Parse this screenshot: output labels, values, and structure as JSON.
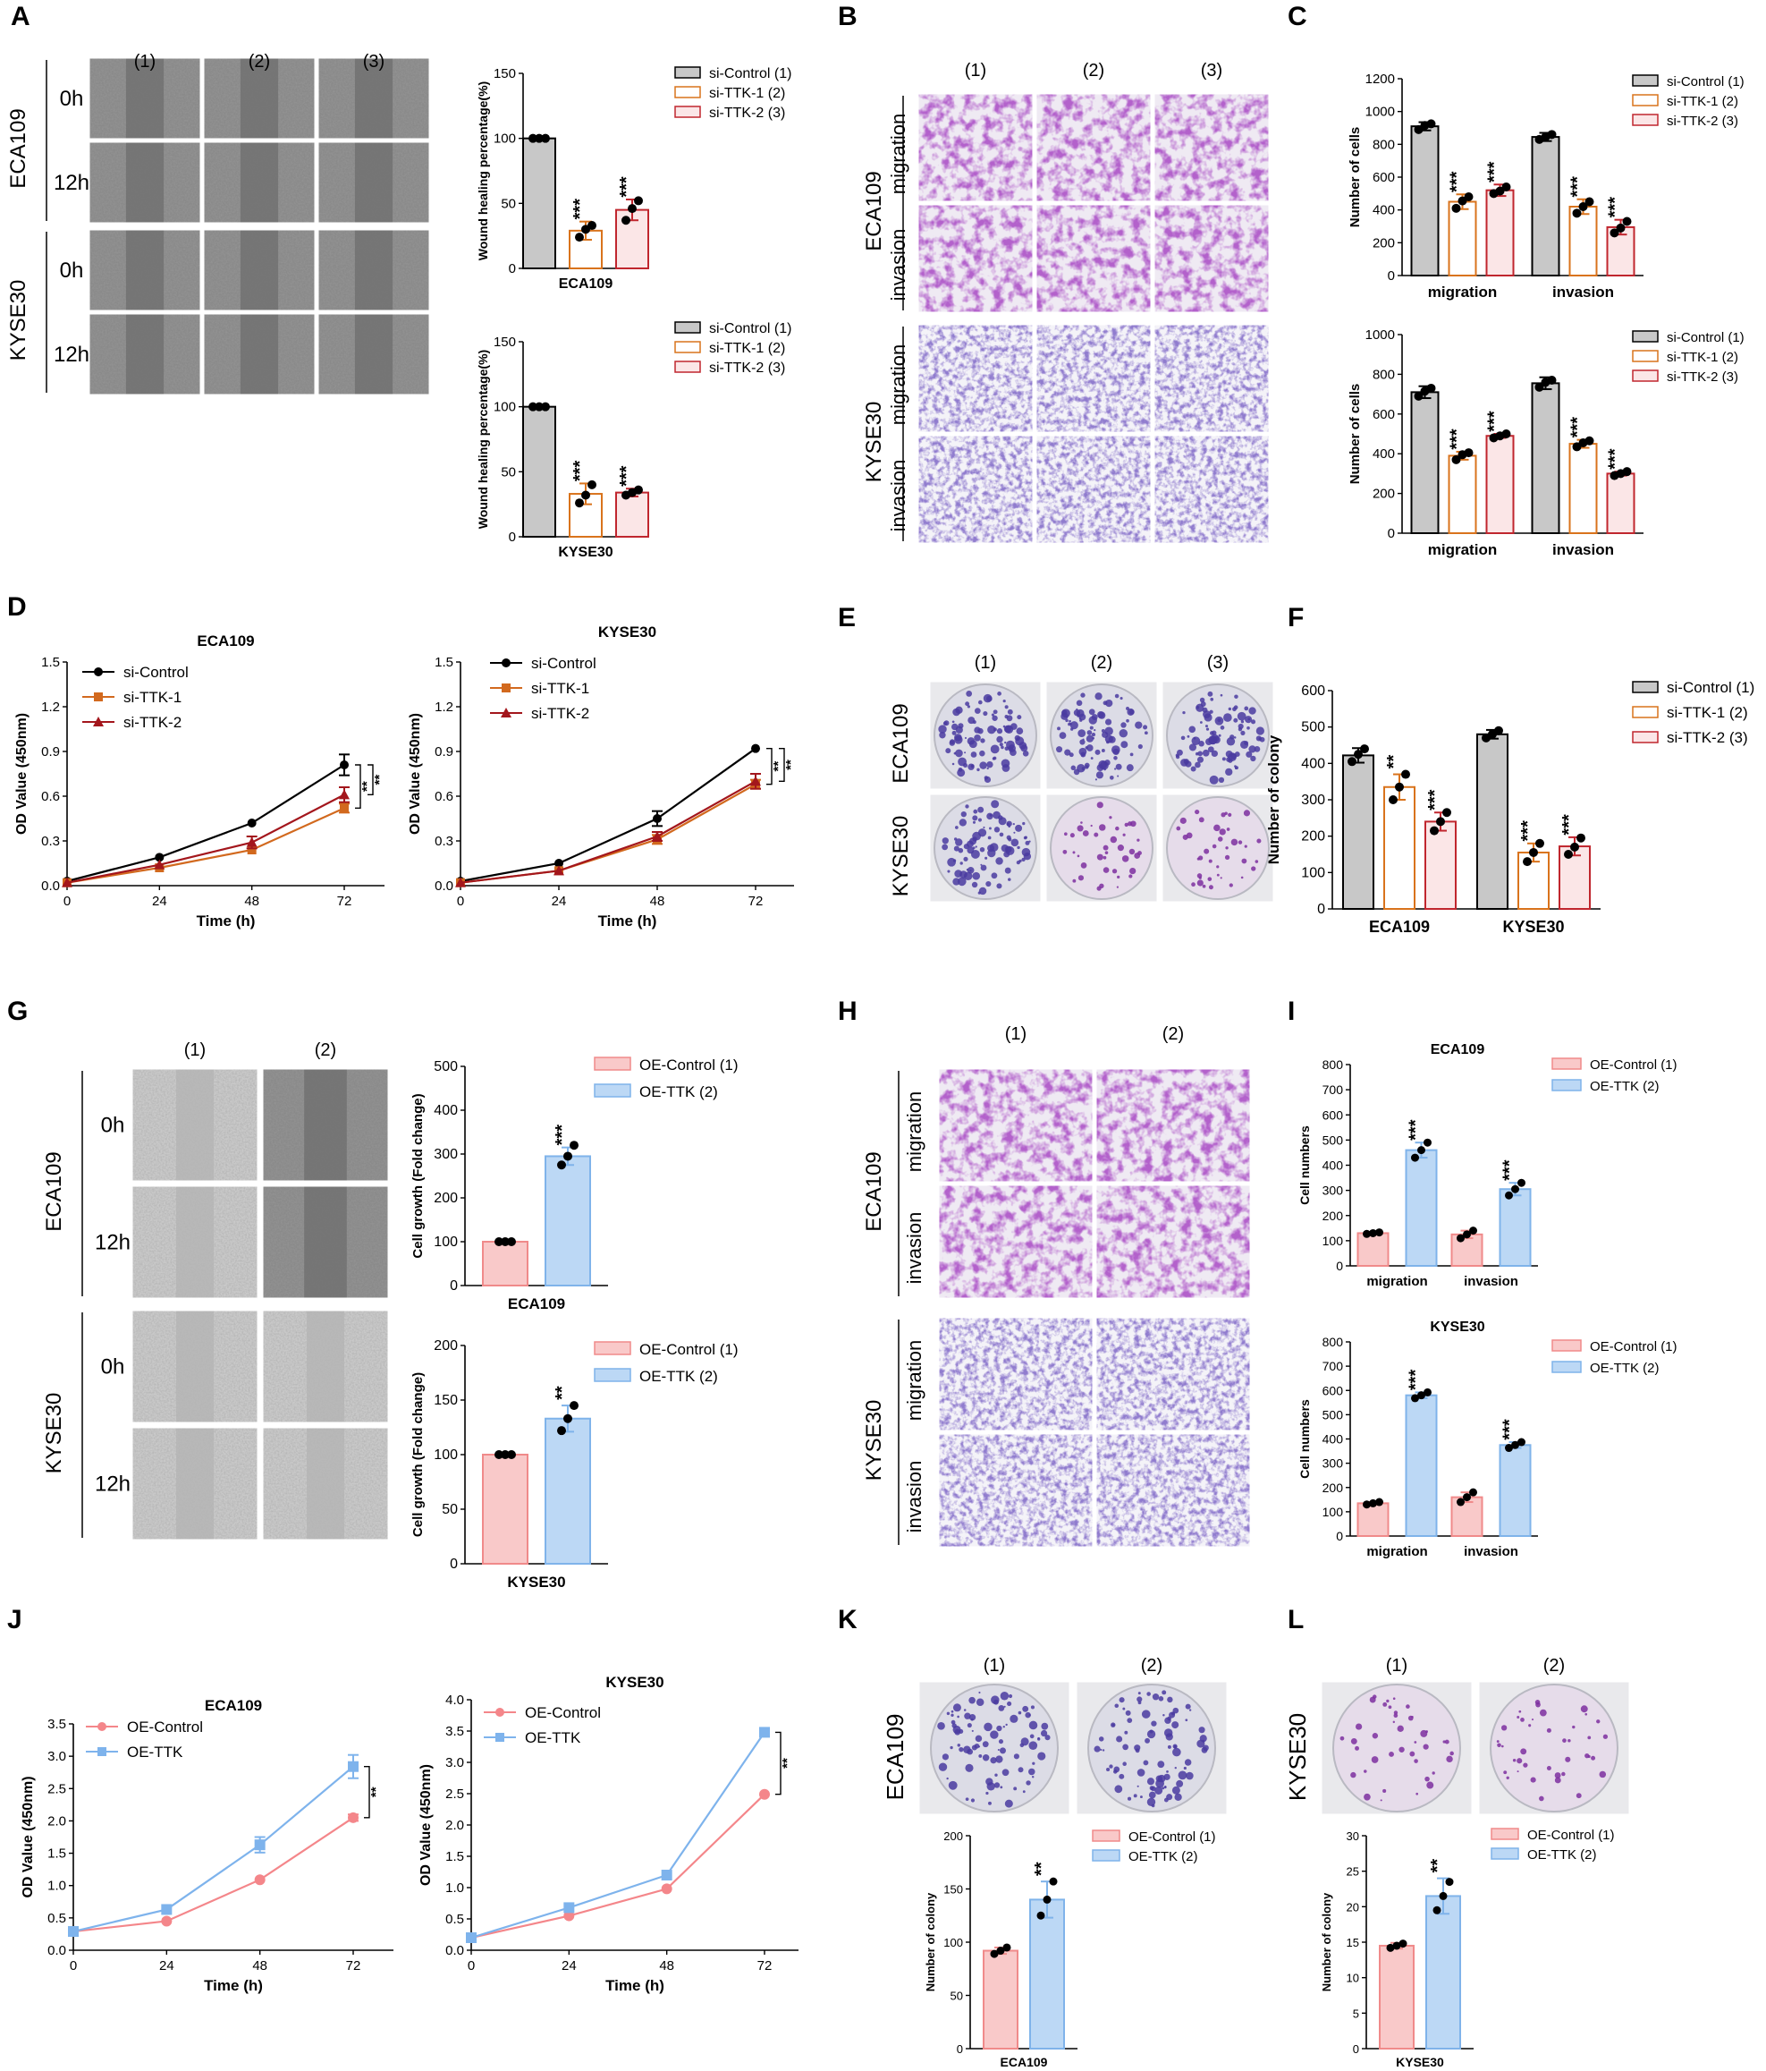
{
  "panels": {
    "A": {
      "letter": "A",
      "columns": [
        "(1)",
        "(2)",
        "(3)"
      ],
      "groups": [
        {
          "name": "ECA109",
          "rows": [
            "0h",
            "12h"
          ]
        },
        {
          "name": "KYSE30",
          "rows": [
            "0h",
            "12h"
          ]
        }
      ]
    },
    "B": {
      "letter": "B",
      "columns": [
        "(1)",
        "(2)",
        "(3)"
      ],
      "groups": [
        {
          "name": "ECA109",
          "rows": [
            "migration",
            "invasion"
          ]
        },
        {
          "name": "KYSE30",
          "rows": [
            "migration",
            "invasion"
          ]
        }
      ]
    },
    "C": {
      "letter": "C"
    },
    "D": {
      "letter": "D"
    },
    "E": {
      "letter": "E",
      "columns": [
        "(1)",
        "(2)",
        "(3)"
      ],
      "groups": [
        {
          "name": "ECA109",
          "rows": [
            ""
          ]
        },
        {
          "name": "KYSE30",
          "rows": [
            ""
          ]
        }
      ]
    },
    "F": {
      "letter": "F"
    },
    "G": {
      "letter": "G",
      "columns": [
        "(1)",
        "(2)"
      ],
      "groups": [
        {
          "name": "ECA109",
          "rows": [
            "0h",
            "12h"
          ]
        },
        {
          "name": "KYSE30",
          "rows": [
            "0h",
            "12h"
          ]
        }
      ]
    },
    "H": {
      "letter": "H",
      "columns": [
        "(1)",
        "(2)"
      ],
      "groups": [
        {
          "name": "ECA109",
          "rows": [
            "migration",
            "invasion"
          ]
        },
        {
          "name": "KYSE30",
          "rows": [
            "migration",
            "invasion"
          ]
        }
      ]
    },
    "I": {
      "letter": "I"
    },
    "J": {
      "letter": "J"
    },
    "K": {
      "letter": "K",
      "columns": [
        "(1)",
        "(2)"
      ],
      "side_label": "ECA109"
    },
    "L": {
      "letter": "L",
      "columns": [
        "(1)",
        "(2)"
      ],
      "side_label": "KYSE30"
    }
  },
  "colors": {
    "grey": "#c8c8c8",
    "orange": "#d9731c",
    "red": "#c0262e",
    "pink_fill": "#f9c9c9",
    "pink_line": "#f08a8a",
    "blue_fill": "#bcd8f5",
    "blue_line": "#7fb3ea",
    "line_black": "#000000",
    "line_orange": "#d2691e",
    "line_darkred": "#a3161c",
    "line_pink": "#f4868a",
    "line_blue": "#7eb3ec",
    "stain_purple": "#7d2fa0",
    "stain_blue": "#4a3ba0",
    "well_bg": "#e9e9ec"
  },
  "chart_data": [
    {
      "id": "A1",
      "type": "bar",
      "categories": [
        "si-Control (1)",
        "si-TTK-1 (2)",
        "si-TTK-2 (3)"
      ],
      "values": [
        100,
        29,
        45
      ],
      "errors": [
        0,
        7,
        8
      ],
      "points": [
        [
          100,
          100,
          100
        ],
        [
          24,
          30,
          33
        ],
        [
          37,
          46,
          52
        ]
      ],
      "sig": [
        "",
        "***",
        "***"
      ],
      "xlabel": "ECA109",
      "ylabel": "Wound healing percentage(%)",
      "ylim": [
        0,
        150
      ],
      "yticks": [
        "0",
        "50",
        "100",
        "150"
      ]
    },
    {
      "id": "A2",
      "type": "bar",
      "categories": [
        "si-Control (1)",
        "si-TTK-1 (2)",
        "si-TTK-2 (3)"
      ],
      "values": [
        100,
        33,
        34
      ],
      "errors": [
        0,
        8,
        3
      ],
      "points": [
        [
          100,
          100,
          100
        ],
        [
          26,
          32,
          40
        ],
        [
          32,
          34,
          36
        ]
      ],
      "sig": [
        "",
        "***",
        "***"
      ],
      "xlabel": "KYSE30",
      "ylabel": "Wound healing percentage(%)",
      "ylim": [
        0,
        150
      ],
      "yticks": [
        "0",
        "50",
        "100",
        "150"
      ]
    },
    {
      "id": "C1",
      "type": "bar",
      "categories": [
        "migration",
        "invasion"
      ],
      "series": [
        {
          "name": "si-Control (1)",
          "values": [
            910,
            845
          ],
          "errors": [
            25,
            25
          ],
          "points": [
            [
              890,
              915,
              925
            ],
            [
              830,
              845,
              860
            ]
          ],
          "sig": [
            "",
            ""
          ]
        },
        {
          "name": "si-TTK-1 (2)",
          "values": [
            450,
            420
          ],
          "errors": [
            45,
            45
          ],
          "points": [
            [
              410,
              455,
              480
            ],
            [
              380,
              420,
              450
            ]
          ],
          "sig": [
            "***",
            "***"
          ]
        },
        {
          "name": "si-TTK-2 (3)",
          "values": [
            520,
            295
          ],
          "errors": [
            35,
            45
          ],
          "points": [
            [
              500,
              515,
              540
            ],
            [
              260,
              290,
              330
            ]
          ],
          "sig": [
            "***",
            "***"
          ]
        }
      ],
      "ylabel": "Number of cells",
      "ylim": [
        0,
        1200
      ],
      "yticks": [
        "0",
        "200",
        "400",
        "600",
        "800",
        "1000",
        "1200"
      ]
    },
    {
      "id": "C2",
      "type": "bar",
      "categories": [
        "migration",
        "invasion"
      ],
      "series": [
        {
          "name": "si-Control (1)",
          "values": [
            710,
            755
          ],
          "errors": [
            30,
            30
          ],
          "points": [
            [
              690,
              715,
              730
            ],
            [
              735,
              760,
              770
            ]
          ],
          "sig": [
            "",
            ""
          ]
        },
        {
          "name": "si-TTK-1 (2)",
          "values": [
            390,
            450
          ],
          "errors": [
            20,
            20
          ],
          "points": [
            [
              370,
              395,
              405
            ],
            [
              435,
              455,
              465
            ]
          ],
          "sig": [
            "***",
            "***"
          ]
        },
        {
          "name": "si-TTK-2 (3)",
          "values": [
            490,
            300
          ],
          "errors": [
            10,
            10
          ],
          "points": [
            [
              480,
              490,
              500
            ],
            [
              290,
              300,
              310
            ]
          ],
          "sig": [
            "***",
            "***"
          ]
        }
      ],
      "ylabel": "Number of cells",
      "ylim": [
        0,
        1000
      ],
      "yticks": [
        "0",
        "200",
        "400",
        "600",
        "800",
        "1000"
      ]
    },
    {
      "id": "D1",
      "type": "line",
      "title": "ECA109",
      "x": [
        0,
        24,
        48,
        72
      ],
      "series": [
        {
          "name": "si-Control",
          "values": [
            0.03,
            0.19,
            0.42,
            0.81
          ],
          "errors": [
            0,
            0,
            0,
            0.07
          ]
        },
        {
          "name": "si-TTK-1",
          "values": [
            0.02,
            0.12,
            0.24,
            0.52
          ],
          "errors": [
            0,
            0,
            0,
            0.03
          ]
        },
        {
          "name": "si-TTK-2",
          "values": [
            0.02,
            0.14,
            0.29,
            0.61
          ],
          "errors": [
            0,
            0,
            0.04,
            0.05
          ]
        }
      ],
      "xlabel": "Time (h)",
      "ylabel": "OD Value (450nm)",
      "ylim": [
        0,
        1.5
      ],
      "yticks": [
        "0.0",
        "0.3",
        "0.6",
        "0.9",
        "1.2",
        "1.5"
      ],
      "xticks": [
        "0",
        "24",
        "48",
        "72"
      ],
      "sig": [
        "**",
        "**"
      ]
    },
    {
      "id": "D2",
      "type": "line",
      "title": "KYSE30",
      "x": [
        0,
        24,
        48,
        72
      ],
      "series": [
        {
          "name": "si-Control",
          "values": [
            0.03,
            0.15,
            0.45,
            0.92
          ],
          "errors": [
            0,
            0,
            0.05,
            0
          ]
        },
        {
          "name": "si-TTK-1",
          "values": [
            0.02,
            0.1,
            0.31,
            0.68
          ],
          "errors": [
            0,
            0,
            0.03,
            0.03
          ]
        },
        {
          "name": "si-TTK-2",
          "values": [
            0.02,
            0.1,
            0.33,
            0.7
          ],
          "errors": [
            0,
            0,
            0.03,
            0.05
          ]
        }
      ],
      "xlabel": "Time (h)",
      "ylabel": "OD Value (450nm)",
      "ylim": [
        0,
        1.5
      ],
      "yticks": [
        "0.0",
        "0.3",
        "0.6",
        "0.9",
        "1.2",
        "1.5"
      ],
      "xticks": [
        "0",
        "24",
        "48",
        "72"
      ],
      "sig": [
        "**",
        "**"
      ]
    },
    {
      "id": "F",
      "type": "bar",
      "categories": [
        "ECA109",
        "KYSE30"
      ],
      "series": [
        {
          "name": "si-Control (1)",
          "values": [
            422,
            480
          ],
          "errors": [
            20,
            12
          ],
          "points": [
            [
              405,
              425,
              440
            ],
            [
              470,
              480,
              490
            ]
          ],
          "sig": [
            "",
            ""
          ]
        },
        {
          "name": "si-TTK-1 (2)",
          "values": [
            335,
            155
          ],
          "errors": [
            35,
            25
          ],
          "points": [
            [
              300,
              335,
              370
            ],
            [
              130,
              155,
              180
            ]
          ],
          "sig": [
            "**",
            "***"
          ]
        },
        {
          "name": "si-TTK-2 (3)",
          "values": [
            240,
            172
          ],
          "errors": [
            25,
            25
          ],
          "points": [
            [
              215,
              240,
              265
            ],
            [
              150,
              170,
              195
            ]
          ],
          "sig": [
            "***",
            "***"
          ]
        }
      ],
      "ylabel": "Number of colony",
      "ylim": [
        0,
        600
      ],
      "yticks": [
        "0",
        "100",
        "200",
        "300",
        "400",
        "500",
        "600"
      ]
    },
    {
      "id": "G1",
      "type": "bar",
      "categories": [
        "OE-Control (1)",
        "OE-TTK (2)"
      ],
      "values": [
        100,
        295
      ],
      "errors": [
        0,
        20
      ],
      "points": [
        [
          100,
          100,
          100
        ],
        [
          275,
          295,
          320
        ]
      ],
      "sig": [
        "",
        "***"
      ],
      "xlabel": "ECA109",
      "ylabel": "Cell growth (Fold change)",
      "ylim": [
        0,
        500
      ],
      "yticks": [
        "0",
        "100",
        "200",
        "300",
        "400",
        "500"
      ]
    },
    {
      "id": "G2",
      "type": "bar",
      "categories": [
        "OE-Control (1)",
        "OE-TTK (2)"
      ],
      "values": [
        100,
        133
      ],
      "errors": [
        0,
        12
      ],
      "points": [
        [
          100,
          100,
          100
        ],
        [
          122,
          133,
          145
        ]
      ],
      "sig": [
        "",
        "**"
      ],
      "xlabel": "KYSE30",
      "ylabel": "Cell growth (Fold change)",
      "ylim": [
        0,
        200
      ],
      "yticks": [
        "0",
        "50",
        "100",
        "150",
        "200"
      ]
    },
    {
      "id": "I1",
      "type": "bar",
      "title": "ECA109",
      "categories": [
        "migration",
        "invasion"
      ],
      "series": [
        {
          "name": "OE-Control (1)",
          "values": [
            130,
            125
          ],
          "errors": [
            3,
            15
          ],
          "points": [
            [
              127,
              130,
              133
            ],
            [
              110,
              125,
              140
            ]
          ],
          "sig": [
            "",
            ""
          ]
        },
        {
          "name": "OE-TTK (2)",
          "values": [
            460,
            305
          ],
          "errors": [
            30,
            25
          ],
          "points": [
            [
              430,
              460,
              490
            ],
            [
              280,
              305,
              330
            ]
          ],
          "sig": [
            "***",
            "***"
          ]
        }
      ],
      "ylabel": "Cell numbers",
      "ylim": [
        0,
        800
      ],
      "yticks": [
        "0",
        "100",
        "200",
        "300",
        "400",
        "500",
        "600",
        "700",
        "800"
      ]
    },
    {
      "id": "I2",
      "type": "bar",
      "title": "KYSE30",
      "categories": [
        "migration",
        "invasion"
      ],
      "series": [
        {
          "name": "OE-Control (1)",
          "values": [
            135,
            160
          ],
          "errors": [
            5,
            20
          ],
          "points": [
            [
              130,
              135,
              140
            ],
            [
              140,
              160,
              180
            ]
          ],
          "sig": [
            "",
            ""
          ]
        },
        {
          "name": "OE-TTK (2)",
          "values": [
            580,
            375
          ],
          "errors": [
            12,
            12
          ],
          "points": [
            [
              568,
              580,
              592
            ],
            [
              363,
              375,
              387
            ]
          ],
          "sig": [
            "***",
            "***"
          ]
        }
      ],
      "ylabel": "Cell numbers",
      "ylim": [
        0,
        800
      ],
      "yticks": [
        "0",
        "100",
        "200",
        "300",
        "400",
        "500",
        "600",
        "700",
        "800"
      ]
    },
    {
      "id": "J1",
      "type": "line",
      "title": "ECA109",
      "x": [
        0,
        24,
        48,
        72
      ],
      "series": [
        {
          "name": "OE-Control",
          "values": [
            0.29,
            0.45,
            1.09,
            2.05
          ],
          "errors": [
            0,
            0,
            0,
            0.05
          ]
        },
        {
          "name": "OE-TTK",
          "values": [
            0.29,
            0.63,
            1.63,
            2.84
          ],
          "errors": [
            0,
            0,
            0.12,
            0.18
          ]
        }
      ],
      "xlabel": "Time (h)",
      "ylabel": "OD Value (450nm)",
      "ylim": [
        0,
        3.5
      ],
      "yticks": [
        "0.0",
        "0.5",
        "1.0",
        "1.5",
        "2.0",
        "2.5",
        "3.0",
        "3.5"
      ],
      "xticks": [
        "0",
        "24",
        "48",
        "72"
      ],
      "sig": [
        "**"
      ]
    },
    {
      "id": "J2",
      "type": "line",
      "title": "KYSE30",
      "x": [
        0,
        24,
        48,
        72
      ],
      "series": [
        {
          "name": "OE-Control",
          "values": [
            0.2,
            0.55,
            0.98,
            2.49
          ],
          "errors": [
            0,
            0,
            0,
            0
          ]
        },
        {
          "name": "OE-TTK",
          "values": [
            0.2,
            0.68,
            1.2,
            3.48
          ],
          "errors": [
            0,
            0,
            0,
            0
          ]
        }
      ],
      "xlabel": "Time (h)",
      "ylabel": "OD Value (450nm)",
      "ylim": [
        0,
        4.0
      ],
      "yticks": [
        "0.0",
        "0.5",
        "1.0",
        "1.5",
        "2.0",
        "2.5",
        "3.0",
        "3.5",
        "4.0"
      ],
      "xticks": [
        "0",
        "24",
        "48",
        "72"
      ],
      "sig": [
        "**"
      ]
    },
    {
      "id": "K",
      "type": "bar",
      "categories": [
        "OE-Control (1)",
        "OE-TTK (2)"
      ],
      "values": [
        92,
        140
      ],
      "errors": [
        3,
        17
      ],
      "points": [
        [
          89,
          92,
          95
        ],
        [
          125,
          140,
          157
        ]
      ],
      "sig": [
        "",
        "**"
      ],
      "xlabel": "ECA109",
      "ylabel": "Number of colony",
      "ylim": [
        0,
        200
      ],
      "yticks": [
        "0",
        "50",
        "100",
        "150",
        "200"
      ]
    },
    {
      "id": "L",
      "type": "bar",
      "categories": [
        "OE-Control (1)",
        "OE-TTK (2)"
      ],
      "values": [
        14.5,
        21.5
      ],
      "errors": [
        0.4,
        2.5
      ],
      "points": [
        [
          14.2,
          14.5,
          14.8
        ],
        [
          19.5,
          21.5,
          23.5
        ]
      ],
      "sig": [
        "",
        "**"
      ],
      "xlabel": "KYSE30",
      "ylabel": "Number of colony",
      "ylim": [
        0,
        30
      ],
      "yticks": [
        "0",
        "5",
        "10",
        "15",
        "20",
        "25",
        "30"
      ]
    }
  ]
}
